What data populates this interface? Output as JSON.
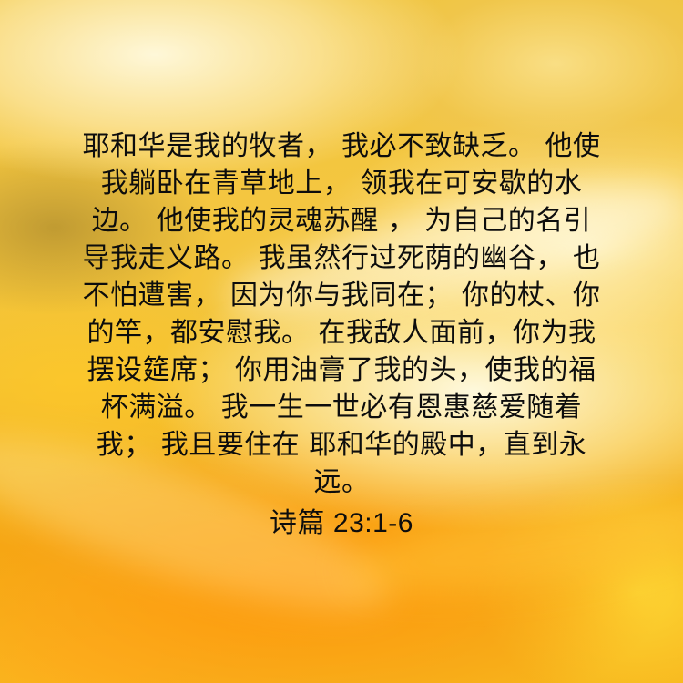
{
  "verse": {
    "lines": [
      "耶和华是我的牧者，  我必不致缺乏。 他使",
      "我躺卧在青草地上，  领我在可安歇的水",
      "边。 他使我的灵魂苏醒 ，  为自己的名引",
      "导我走义路。 我虽然行过死荫的幽谷，  也",
      "不怕遭害，  因为你与我同在；  你的杖、你",
      "的竿，都安慰我。 在我敌人面前，你为我",
      "摆设筵席；  你用油膏了我的头，使我的福",
      "杯满溢。 我一生一世必有恩惠慈爱随着",
      "我；  我且要住在 耶和华的殿中，直到永",
      "远。"
    ],
    "reference": "诗篇 23:1-6"
  },
  "colors": {
    "text": "#0d0d0d",
    "background_primary": "#f2b215",
    "background_highlight": "#fffbe6",
    "background_deep": "#f59a0e"
  }
}
